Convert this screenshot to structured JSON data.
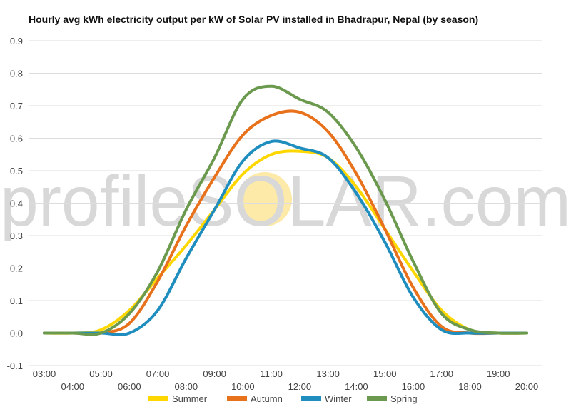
{
  "chart_data": {
    "type": "line",
    "title": "Hourly avg kWh electricity output per kW of Solar PV installed in Bhadrapur, Nepal (by season)",
    "watermark": {
      "part1": "profile",
      "part2": "SOLAR",
      "part3": ".com",
      "sun_color": "#fde9a8"
    },
    "ylim": [
      -0.1,
      0.9
    ],
    "yticks": [
      "-0.1",
      "0.0",
      "0.1",
      "0.2",
      "0.3",
      "0.4",
      "0.5",
      "0.6",
      "0.7",
      "0.8",
      "0.9"
    ],
    "yticks_values": [
      -0.1,
      0.0,
      0.1,
      0.2,
      0.3,
      0.4,
      0.5,
      0.6,
      0.7,
      0.8,
      0.9
    ],
    "xlim": [
      3,
      20
    ],
    "xticks": [
      "03:00",
      "04:00",
      "05:00",
      "06:00",
      "07:00",
      "08:00",
      "09:00",
      "10:00",
      "11:00",
      "12:00",
      "13:00",
      "14:00",
      "15:00",
      "16:00",
      "17:00",
      "18:00",
      "19:00",
      "20:00"
    ],
    "x": [
      3,
      4,
      5,
      6,
      7,
      8,
      9,
      10,
      11,
      12,
      13,
      14,
      15,
      16,
      17,
      18,
      19,
      20
    ],
    "legend_position": "bottom",
    "series": [
      {
        "name": "Summer",
        "color": "#ffd700",
        "values": [
          0.0,
          0.0,
          0.01,
          0.07,
          0.17,
          0.27,
          0.38,
          0.49,
          0.55,
          0.56,
          0.54,
          0.45,
          0.32,
          0.19,
          0.07,
          0.01,
          0.0,
          0.0
        ]
      },
      {
        "name": "Autumn",
        "color": "#e8711c",
        "values": [
          0.0,
          0.0,
          0.0,
          0.03,
          0.16,
          0.33,
          0.48,
          0.61,
          0.67,
          0.68,
          0.62,
          0.49,
          0.32,
          0.14,
          0.02,
          0.0,
          0.0,
          0.0
        ]
      },
      {
        "name": "Winter",
        "color": "#1f8ebf",
        "values": [
          0.0,
          0.0,
          0.0,
          0.0,
          0.07,
          0.23,
          0.38,
          0.53,
          0.59,
          0.57,
          0.54,
          0.43,
          0.28,
          0.11,
          0.01,
          0.0,
          0.0,
          0.0
        ]
      },
      {
        "name": "Spring",
        "color": "#6b9a4f",
        "values": [
          0.0,
          0.0,
          0.0,
          0.06,
          0.19,
          0.38,
          0.54,
          0.72,
          0.76,
          0.72,
          0.68,
          0.57,
          0.41,
          0.22,
          0.06,
          0.01,
          0.0,
          0.0
        ]
      }
    ]
  }
}
